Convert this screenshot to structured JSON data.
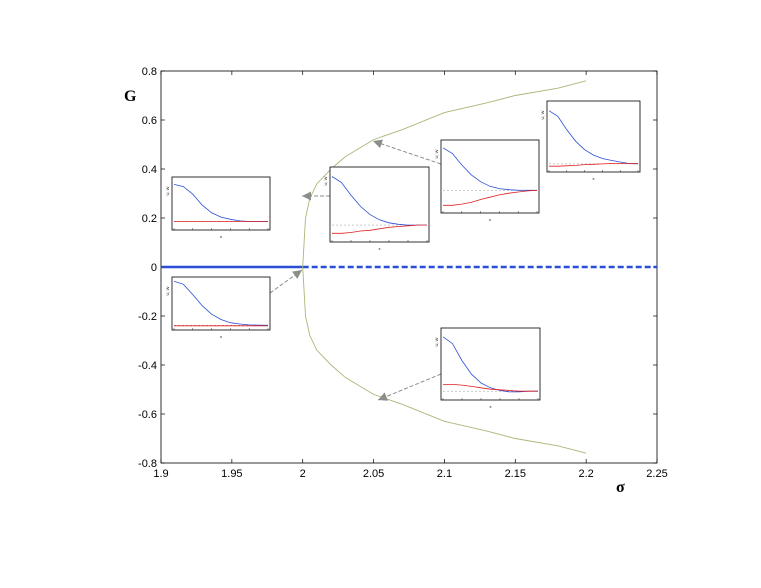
{
  "chart_data": {
    "type": "line",
    "title": "",
    "xlabel": "σ",
    "ylabel": "G",
    "xlim": [
      1.9,
      2.25
    ],
    "ylim": [
      -0.8,
      0.8
    ],
    "xticks": [
      "1.9",
      "1.95",
      "2",
      "2.05",
      "2.1",
      "2.15",
      "2.2",
      "2.25"
    ],
    "yticks": [
      "0.8",
      "0.6",
      "0.4",
      "0.2",
      "0",
      "-0.2",
      "-0.4",
      "-0.6",
      "-0.8"
    ],
    "grid": false,
    "series": [
      {
        "style": "solid",
        "color": "#2a4fd6",
        "x": [
          1.9,
          2.0
        ],
        "y": [
          0,
          0
        ]
      },
      {
        "style": "dashed",
        "color": "#2a4fd6",
        "x": [
          2.0,
          2.25
        ],
        "y": [
          0,
          0
        ]
      },
      {
        "style": "solid",
        "color": "#a8b878",
        "x": [
          2.0,
          2.002,
          2.005,
          2.01,
          2.02,
          2.03,
          2.05,
          2.07,
          2.1,
          2.13,
          2.15,
          2.18,
          2.2
        ],
        "y": [
          0.0,
          0.2,
          0.28,
          0.34,
          0.4,
          0.45,
          0.52,
          0.56,
          0.63,
          0.67,
          0.7,
          0.73,
          0.76
        ]
      },
      {
        "style": "solid",
        "color": "#a8b878",
        "x": [
          2.0,
          2.002,
          2.005,
          2.01,
          2.02,
          2.03,
          2.05,
          2.07,
          2.1,
          2.13,
          2.15,
          2.18,
          2.2
        ],
        "y": [
          0.0,
          -0.2,
          -0.28,
          -0.34,
          -0.4,
          -0.45,
          -0.52,
          -0.56,
          -0.63,
          -0.67,
          -0.7,
          -0.73,
          -0.76
        ]
      }
    ],
    "insets": [
      {
        "id": "inset-a",
        "ylabel": "U, W",
        "xlabel": "x",
        "blue": [
          0.35,
          0.33,
          0.26,
          0.16,
          0.09,
          0.05,
          0.03,
          0.015,
          0.01,
          0.01,
          0.01
        ],
        "red": [
          0.01,
          0.01,
          0.01,
          0.01,
          0.01,
          0.01,
          0.01,
          0.01,
          0.01,
          0.01,
          0.01
        ],
        "ymin": -0.05,
        "ymax": 0.4
      },
      {
        "id": "inset-b",
        "ylabel": "U, W",
        "xlabel": "x",
        "blue": [
          1.0,
          0.93,
          0.7,
          0.45,
          0.26,
          0.14,
          0.07,
          0.04,
          0.02,
          0.015,
          0.01
        ],
        "red": [
          0.0,
          0.0,
          0.0,
          0.0,
          0.0,
          0.0,
          0.0,
          0.0,
          0.0,
          0.0,
          0.0
        ],
        "ymin": -0.05,
        "ymax": 1.05
      },
      {
        "id": "inset-c",
        "ylabel": "U, W",
        "xlabel": "x",
        "blue": [
          0.7,
          0.62,
          0.45,
          0.3,
          0.19,
          0.12,
          0.08,
          0.06,
          0.05,
          0.05,
          0.05
        ],
        "red": [
          -0.06,
          -0.06,
          -0.05,
          -0.03,
          -0.02,
          0.0,
          0.02,
          0.03,
          0.04,
          0.05,
          0.05
        ],
        "ymin": -0.15,
        "ymax": 0.8
      },
      {
        "id": "inset-d",
        "ylabel": "U, W",
        "xlabel": "x",
        "blue": [
          0.8,
          0.7,
          0.5,
          0.33,
          0.21,
          0.13,
          0.09,
          0.07,
          0.06,
          0.06,
          0.06
        ],
        "red": [
          -0.2,
          -0.2,
          -0.18,
          -0.15,
          -0.1,
          -0.06,
          -0.02,
          0.01,
          0.03,
          0.05,
          0.06
        ],
        "ymin": -0.3,
        "ymax": 0.9
      },
      {
        "id": "inset-e",
        "ylabel": "U, W",
        "xlabel": "x",
        "blue": [
          1.4,
          1.25,
          0.9,
          0.6,
          0.38,
          0.24,
          0.15,
          0.1,
          0.06,
          0.02,
          0.01
        ],
        "red": [
          -0.05,
          -0.05,
          -0.04,
          -0.03,
          -0.01,
          0.0,
          0.01,
          0.02,
          0.02,
          0.02,
          0.02
        ],
        "ymin": -0.15,
        "ymax": 1.6
      },
      {
        "id": "inset-f",
        "ylabel": "U, W",
        "xlabel": "x",
        "blue": [
          0.8,
          0.7,
          0.45,
          0.25,
          0.12,
          0.05,
          0.01,
          -0.01,
          -0.01,
          0.0,
          0.0
        ],
        "red": [
          0.1,
          0.1,
          0.09,
          0.07,
          0.05,
          0.03,
          0.02,
          0.01,
          0.0,
          0.0,
          0.0
        ],
        "ymin": -0.1,
        "ymax": 0.9
      }
    ]
  }
}
